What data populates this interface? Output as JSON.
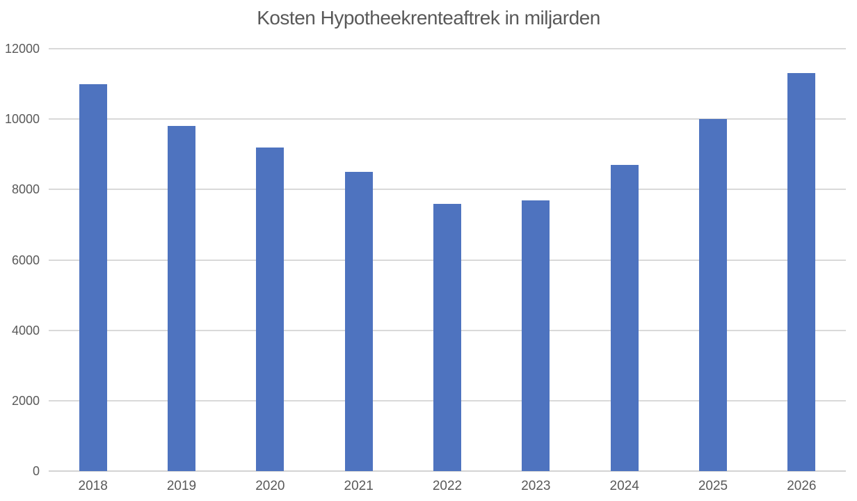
{
  "chart_data": {
    "type": "bar",
    "title": "Kosten Hypotheekrenteaftrek in miljarden",
    "categories": [
      "2018",
      "2019",
      "2020",
      "2021",
      "2022",
      "2023",
      "2024",
      "2025",
      "2026"
    ],
    "values": [
      11000,
      9800,
      9200,
      8500,
      7600,
      7700,
      8700,
      10000,
      11300
    ],
    "xlabel": "",
    "ylabel": "",
    "ylim": [
      0,
      12000
    ],
    "ytick_step": 2000,
    "ytick_labels": [
      "0",
      "2000",
      "4000",
      "6000",
      "8000",
      "10000",
      "12000"
    ],
    "grid": true,
    "legend_position": "none",
    "bar_color": "#4e73bf",
    "gridline_color": "#d9d9d9",
    "axis_line_color": "#d3d3d3",
    "text_color": "#595959",
    "background_color": "#ffffff"
  }
}
